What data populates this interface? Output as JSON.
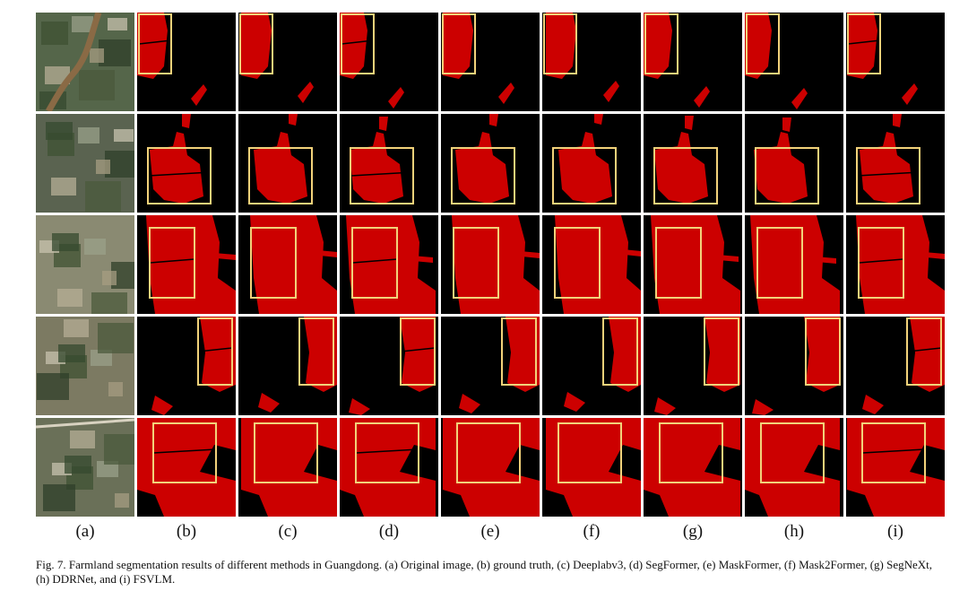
{
  "figure": {
    "column_labels": [
      "(a)",
      "(b)",
      "(c)",
      "(d)",
      "(e)",
      "(f)",
      "(g)",
      "(h)",
      "(i)"
    ],
    "caption": "Fig. 7.   Farmland segmentation results of different methods in Guangdong. (a) Original image, (b) ground truth, (c) Deeplabv3, (d) SegFormer, (e) MaskFormer, (f) Mask2Former, (g) SegNeXt, (h) DDRNet, and (i) FSVLM.",
    "colors": {
      "mask": "#cc0000",
      "background": "#000000",
      "highlight_box": "#f2d27a",
      "satellite_base": "#6b7257"
    },
    "rows": 5,
    "columns": 9
  }
}
